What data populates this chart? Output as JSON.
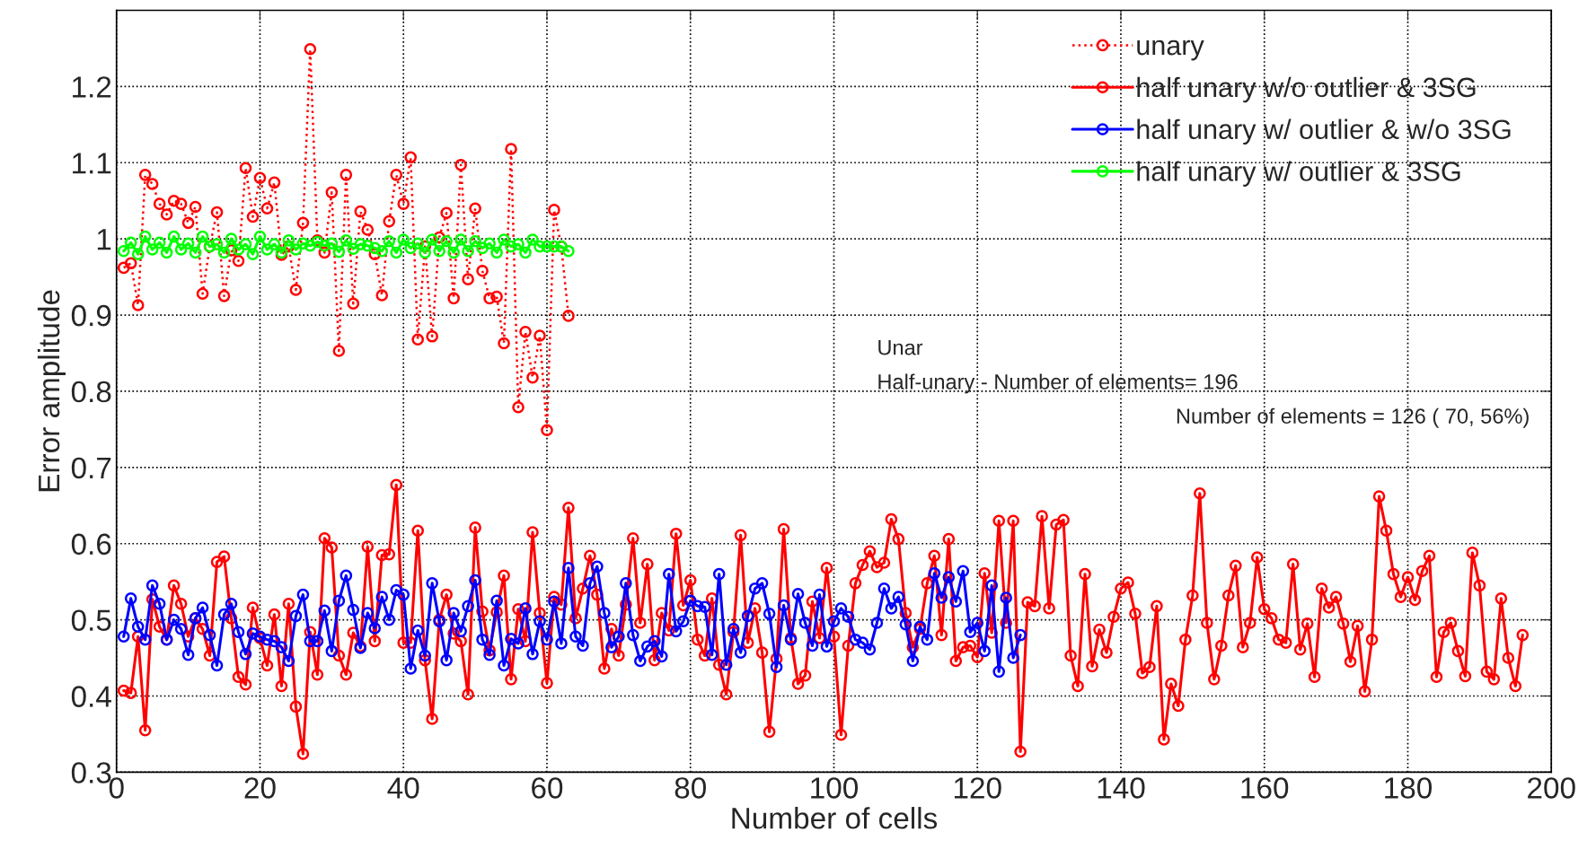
{
  "chart_data": {
    "type": "line",
    "xlabel": "Number of cells",
    "ylabel": "Error amplitude",
    "xlim": [
      0,
      200
    ],
    "xticks": [
      0,
      20,
      40,
      60,
      80,
      100,
      120,
      140,
      160,
      180,
      200
    ],
    "ylim": [
      0.3,
      1.3
    ],
    "yticks": [
      0.3,
      0.4,
      0.5,
      0.6,
      0.7,
      0.8,
      0.9,
      1,
      1.1,
      1.2
    ],
    "grid": true,
    "legend": "top right",
    "marker": "circle",
    "annotations": [
      "Unar",
      "Half-unary - Number of elements= 196",
      "Number of elements = 126 ( 70, 56%)"
    ],
    "series": [
      {
        "name": "unary",
        "color": "#ff0000",
        "line_style": "dotted",
        "x": [
          1,
          2,
          3,
          4,
          5,
          6,
          7,
          8,
          9,
          10,
          11,
          12,
          13,
          14,
          15,
          16,
          17,
          18,
          19,
          20,
          21,
          22,
          23,
          24,
          25,
          26,
          27,
          28,
          29,
          30,
          31,
          32,
          33,
          34,
          35,
          36,
          37,
          38,
          39,
          40,
          41,
          42,
          43,
          44,
          45,
          46,
          47,
          48,
          49,
          50,
          51,
          52,
          53,
          54,
          55,
          56,
          57,
          58,
          59,
          60,
          61,
          62,
          63
        ],
        "values": [
          0.962,
          0.968,
          0.913,
          1.084,
          1.072,
          1.046,
          1.032,
          1.05,
          1.046,
          1.021,
          1.042,
          0.928,
          0.99,
          1.035,
          0.925,
          0.985,
          0.971,
          1.093,
          1.029,
          1.08,
          1.04,
          1.074,
          0.979,
          0.99,
          0.933,
          1.021,
          1.249,
          0.998,
          0.982,
          1.061,
          0.853,
          1.084,
          0.915,
          1.036,
          1.012,
          0.98,
          0.926,
          1.023,
          1.084,
          1.046,
          1.107,
          0.868,
          0.99,
          0.872,
          1.002,
          1.034,
          0.922,
          1.097,
          0.947,
          1.04,
          0.958,
          0.922,
          0.924,
          0.863,
          1.118,
          0.779,
          0.878,
          0.818,
          0.873,
          0.749,
          1.038,
          0.99,
          0.899
        ]
      },
      {
        "name": "half unary w/o outlier & 3SG",
        "color": "#ff0000",
        "line_style": "solid",
        "x": [
          1,
          2,
          3,
          4,
          5,
          6,
          7,
          8,
          9,
          10,
          11,
          12,
          13,
          14,
          15,
          16,
          17,
          18,
          19,
          20,
          21,
          22,
          23,
          24,
          25,
          26,
          27,
          28,
          29,
          30,
          31,
          32,
          33,
          34,
          35,
          36,
          37,
          38,
          39,
          40,
          41,
          42,
          43,
          44,
          45,
          46,
          47,
          48,
          49,
          50,
          51,
          52,
          53,
          54,
          55,
          56,
          57,
          58,
          59,
          60,
          61,
          62,
          63,
          64,
          65,
          66,
          67,
          68,
          69,
          70,
          71,
          72,
          73,
          74,
          75,
          76,
          77,
          78,
          79,
          80,
          81,
          82,
          83,
          84,
          85,
          86,
          87,
          88,
          89,
          90,
          91,
          92,
          93,
          94,
          95,
          96,
          97,
          98,
          99,
          100,
          101,
          102,
          103,
          104,
          105,
          106,
          107,
          108,
          109,
          110,
          111,
          112,
          113,
          114,
          115,
          116,
          117,
          118,
          119,
          120,
          121,
          122,
          123,
          124,
          125,
          126,
          127,
          128,
          129,
          130,
          131,
          132,
          133,
          134,
          135,
          136,
          137,
          138,
          139,
          140,
          141,
          142,
          143,
          144,
          145,
          146,
          147,
          148,
          149,
          150,
          151,
          152,
          153,
          154,
          155,
          156,
          157,
          158,
          159,
          160,
          161,
          162,
          163,
          164,
          165,
          166,
          167,
          168,
          169,
          170,
          171,
          172,
          173,
          174,
          175,
          176,
          177,
          178,
          179,
          180,
          181,
          182,
          183,
          184,
          185,
          186,
          187,
          188,
          189,
          190,
          191,
          192,
          193,
          194,
          195,
          196
        ],
        "values": [
          0.407,
          0.404,
          0.478,
          0.355,
          0.527,
          0.491,
          0.474,
          0.545,
          0.521,
          0.478,
          0.502,
          0.488,
          0.453,
          0.576,
          0.583,
          0.502,
          0.425,
          0.415,
          0.516,
          0.476,
          0.44,
          0.507,
          0.413,
          0.521,
          0.386,
          0.324,
          0.484,
          0.428,
          0.607,
          0.595,
          0.453,
          0.428,
          0.483,
          0.465,
          0.596,
          0.472,
          0.585,
          0.586,
          0.677,
          0.47,
          0.47,
          0.617,
          0.447,
          0.37,
          0.5,
          0.533,
          0.482,
          0.472,
          0.402,
          0.621,
          0.511,
          0.46,
          0.51,
          0.558,
          0.422,
          0.514,
          0.472,
          0.615,
          0.509,
          0.417,
          0.53,
          0.52,
          0.647,
          0.502,
          0.541,
          0.584,
          0.533,
          0.436,
          0.488,
          0.453,
          0.52,
          0.607,
          0.496,
          0.573,
          0.447,
          0.509,
          0.486,
          0.613,
          0.519,
          0.552,
          0.474,
          0.453,
          0.528,
          0.441,
          0.402,
          0.484,
          0.611,
          0.47,
          0.515,
          0.457,
          0.353,
          0.449,
          0.619,
          0.476,
          0.416,
          0.427,
          0.524,
          0.476,
          0.568,
          0.478,
          0.349,
          0.466,
          0.548,
          0.572,
          0.59,
          0.569,
          0.575,
          0.632,
          0.606,
          0.509,
          0.464,
          0.488,
          0.548,
          0.584,
          0.48,
          0.606,
          0.446,
          0.464,
          0.466,
          0.451,
          0.561,
          0.483,
          0.63,
          0.496,
          0.63,
          0.327,
          0.523,
          0.518,
          0.636,
          0.515,
          0.625,
          0.631,
          0.453,
          0.413,
          0.56,
          0.439,
          0.487,
          0.457,
          0.504,
          0.541,
          0.549,
          0.508,
          0.43,
          0.438,
          0.518,
          0.343,
          0.416,
          0.387,
          0.474,
          0.532,
          0.666,
          0.496,
          0.422,
          0.466,
          0.532,
          0.571,
          0.464,
          0.496,
          0.582,
          0.514,
          0.502,
          0.474,
          0.47,
          0.573,
          0.461,
          0.495,
          0.425,
          0.541,
          0.516,
          0.53,
          0.495,
          0.445,
          0.492,
          0.406,
          0.474,
          0.662,
          0.617,
          0.56,
          0.53,
          0.556,
          0.526,
          0.564,
          0.584,
          0.425,
          0.484,
          0.496,
          0.459,
          0.426,
          0.588,
          0.545,
          0.432,
          0.422,
          0.528,
          0.45,
          0.413,
          0.48
        ]
      },
      {
        "name": "half unary w/ outlier & w/o 3SG",
        "color": "#0000ff",
        "line_style": "solid",
        "x": [
          1,
          2,
          3,
          4,
          5,
          6,
          7,
          8,
          9,
          10,
          11,
          12,
          13,
          14,
          15,
          16,
          17,
          18,
          19,
          20,
          21,
          22,
          23,
          24,
          25,
          26,
          27,
          28,
          29,
          30,
          31,
          32,
          33,
          34,
          35,
          36,
          37,
          38,
          39,
          40,
          41,
          42,
          43,
          44,
          45,
          46,
          47,
          48,
          49,
          50,
          51,
          52,
          53,
          54,
          55,
          56,
          57,
          58,
          59,
          60,
          61,
          62,
          63,
          64,
          65,
          66,
          67,
          68,
          69,
          70,
          71,
          72,
          73,
          74,
          75,
          76,
          77,
          78,
          79,
          80,
          81,
          82,
          83,
          84,
          85,
          86,
          87,
          88,
          89,
          90,
          91,
          92,
          93,
          94,
          95,
          96,
          97,
          98,
          99,
          100,
          101,
          102,
          103,
          104,
          105,
          106,
          107,
          108,
          109,
          110,
          111,
          112,
          113,
          114,
          115,
          116,
          117,
          118,
          119,
          120,
          121,
          122,
          123,
          124,
          125,
          126
        ],
        "values": [
          0.478,
          0.528,
          0.491,
          0.474,
          0.545,
          0.521,
          0.474,
          0.5,
          0.488,
          0.454,
          0.502,
          0.516,
          0.48,
          0.44,
          0.507,
          0.521,
          0.484,
          0.455,
          0.482,
          0.478,
          0.474,
          0.472,
          0.464,
          0.446,
          0.505,
          0.533,
          0.472,
          0.472,
          0.512,
          0.459,
          0.525,
          0.558,
          0.513,
          0.463,
          0.509,
          0.489,
          0.53,
          0.5,
          0.539,
          0.533,
          0.436,
          0.486,
          0.453,
          0.548,
          0.498,
          0.447,
          0.509,
          0.485,
          0.518,
          0.552,
          0.474,
          0.454,
          0.525,
          0.44,
          0.475,
          0.469,
          0.515,
          0.455,
          0.498,
          0.474,
          0.524,
          0.469,
          0.568,
          0.478,
          0.466,
          0.548,
          0.57,
          0.509,
          0.464,
          0.478,
          0.548,
          0.48,
          0.446,
          0.465,
          0.472,
          0.452,
          0.56,
          0.485,
          0.498,
          0.525,
          0.518,
          0.517,
          0.454,
          0.56,
          0.441,
          0.488,
          0.457,
          0.505,
          0.541,
          0.548,
          0.508,
          0.438,
          0.519,
          0.474,
          0.534,
          0.496,
          0.466,
          0.533,
          0.465,
          0.498,
          0.515,
          0.504,
          0.474,
          0.47,
          0.461,
          0.496,
          0.541,
          0.515,
          0.53,
          0.494,
          0.446,
          0.491,
          0.474,
          0.561,
          0.529,
          0.556,
          0.524,
          0.564,
          0.484,
          0.496,
          0.459,
          0.545,
          0.432,
          0.529,
          0.45,
          0.48
        ]
      },
      {
        "name": "half unary w/ outlier & 3SG",
        "color": "#00ff00",
        "line_style": "solid",
        "x": [
          1,
          2,
          3,
          4,
          5,
          6,
          7,
          8,
          9,
          10,
          11,
          12,
          13,
          14,
          15,
          16,
          17,
          18,
          19,
          20,
          21,
          22,
          23,
          24,
          25,
          26,
          27,
          28,
          29,
          30,
          31,
          32,
          33,
          34,
          35,
          36,
          37,
          38,
          39,
          40,
          41,
          42,
          43,
          44,
          45,
          46,
          47,
          48,
          49,
          50,
          51,
          52,
          53,
          54,
          55,
          56,
          57,
          58,
          59,
          60,
          61,
          62,
          63
        ],
        "values": [
          0.984,
          0.995,
          0.98,
          1.003,
          0.986,
          0.995,
          0.982,
          1.003,
          0.986,
          0.994,
          0.982,
          1.003,
          0.99,
          0.993,
          0.982,
          1.0,
          0.986,
          0.993,
          0.98,
          1.003,
          0.986,
          0.993,
          0.982,
          0.998,
          0.986,
          0.994,
          0.991,
          0.996,
          0.991,
          0.994,
          0.983,
          0.998,
          0.987,
          0.993,
          0.991,
          0.988,
          0.984,
          0.997,
          0.982,
          0.999,
          0.988,
          0.994,
          0.982,
          0.999,
          0.984,
          0.997,
          0.982,
          0.999,
          0.984,
          0.997,
          0.988,
          0.994,
          0.982,
          0.999,
          0.99,
          0.993,
          0.982,
          0.999,
          0.99,
          0.99,
          0.99,
          0.99,
          0.984
        ]
      }
    ]
  }
}
